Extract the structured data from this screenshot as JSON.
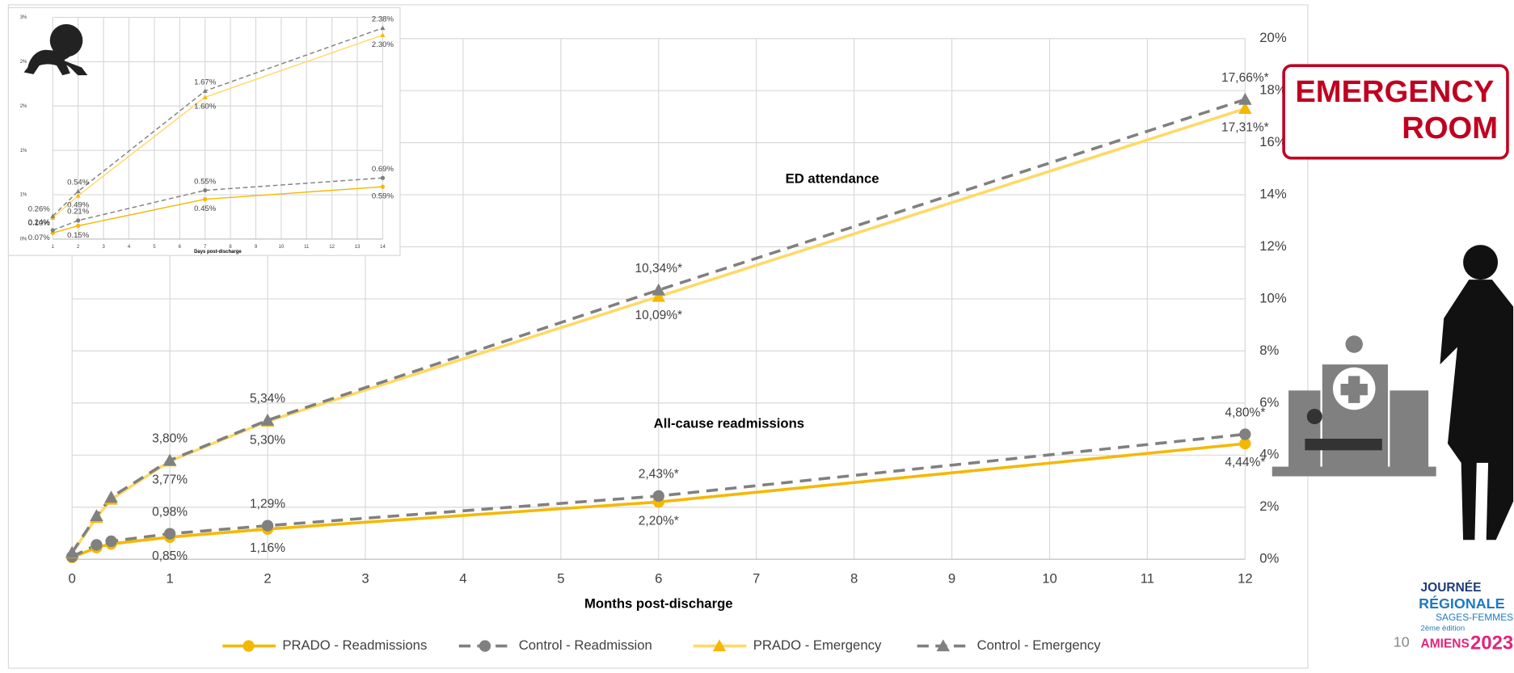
{
  "chart_data": [
    {
      "type": "line",
      "xlabel": "Months post-discharge",
      "annotations": [
        "ED attendance",
        "All-cause readmissions"
      ],
      "x": [
        0,
        0.25,
        0.4,
        1,
        2,
        6,
        12
      ],
      "xlim": [
        0,
        12
      ],
      "xticks": [
        0,
        1,
        2,
        3,
        4,
        5,
        6,
        7,
        8,
        9,
        10,
        11,
        12
      ],
      "ylim": [
        0,
        20
      ],
      "yticks": [
        {
          "value": 0,
          "label": "0%"
        },
        {
          "value": 2,
          "label": "2%"
        },
        {
          "value": 4,
          "label": "4%"
        },
        {
          "value": 6,
          "label": "6%"
        },
        {
          "value": 8,
          "label": "8%"
        },
        {
          "value": 10,
          "label": "10%"
        },
        {
          "value": 12,
          "label": "12%"
        },
        {
          "value": 14,
          "label": "14%"
        },
        {
          "value": 16,
          "label": "16%"
        },
        {
          "value": 18,
          "label": "18%"
        },
        {
          "value": 20,
          "label": "20%"
        }
      ],
      "y_axis_position": "right",
      "grid": true,
      "legend": "bottom",
      "series": [
        {
          "name": "PRADO - Readmissions",
          "color": "#f5b800",
          "dash": false,
          "marker": "circle",
          "values": [
            0.07,
            0.45,
            0.59,
            0.85,
            1.16,
            2.2,
            4.44
          ],
          "value_labels": [
            null,
            null,
            null,
            "0,85%",
            "1,16%",
            "2,20%*",
            "4,44%*"
          ]
        },
        {
          "name": "Control - Readmission",
          "color": "#808080",
          "dash": true,
          "marker": "circle",
          "values": [
            0.1,
            0.55,
            0.69,
            0.98,
            1.29,
            2.43,
            4.8
          ],
          "value_labels": [
            null,
            null,
            null,
            "0,98%",
            "1,29%",
            "2,43%*",
            "4,80%*"
          ]
        },
        {
          "name": "PRADO - Emergency",
          "color": "#ffd966",
          "dash": false,
          "marker": "triangle",
          "values": [
            0.24,
            1.6,
            2.3,
            3.77,
            5.3,
            10.09,
            17.31
          ],
          "value_labels": [
            null,
            null,
            null,
            "3,77%",
            "5,30%",
            "10,09%*",
            "17,31%*"
          ]
        },
        {
          "name": "Control - Emergency",
          "color": "#808080",
          "dash": true,
          "marker": "triangle",
          "values": [
            0.26,
            1.67,
            2.38,
            3.8,
            5.34,
            10.34,
            17.66
          ],
          "value_labels": [
            null,
            null,
            null,
            "3,80%",
            "5,34%",
            "10,34%*",
            "17,66%*"
          ]
        }
      ]
    },
    {
      "type": "line",
      "xlabel": "Days post-discharge",
      "annotations": [],
      "x": [
        1,
        2,
        7,
        14
      ],
      "xlim": [
        1,
        14
      ],
      "xticks": [
        1,
        2,
        3,
        4,
        5,
        6,
        7,
        8,
        9,
        10,
        11,
        12,
        13,
        14
      ],
      "ylim": [
        0,
        2.5
      ],
      "yticks": [
        {
          "value": 0,
          "label": "0%"
        },
        {
          "value": 0.5,
          "label": "1%"
        },
        {
          "value": 1,
          "label": "1%"
        },
        {
          "value": 1.5,
          "label": "2%"
        },
        {
          "value": 2,
          "label": "2%"
        },
        {
          "value": 2.5,
          "label": "3%"
        }
      ],
      "y_axis_position": "left",
      "grid": true,
      "legend": false,
      "series": [
        {
          "name": "PRADO - Readmissions",
          "color": "#f5b800",
          "dash": false,
          "marker": "circle",
          "values": [
            0.07,
            0.15,
            0.45,
            0.59
          ],
          "value_labels": [
            "0.07%",
            "0.15%",
            "0.45%",
            "0.59%"
          ]
        },
        {
          "name": "Control - Readmission",
          "color": "#808080",
          "dash": true,
          "marker": "circle",
          "values": [
            0.1,
            0.21,
            0.55,
            0.69
          ],
          "value_labels": [
            "0.10%",
            "0.21%",
            "0.55%",
            "0.69%"
          ]
        },
        {
          "name": "PRADO - Emergency",
          "color": "#ffd966",
          "dash": false,
          "marker": "triangle",
          "values": [
            0.24,
            0.49,
            1.6,
            2.3
          ],
          "value_labels": [
            "0.24%",
            "0.49%",
            "1.60%",
            "2.30%"
          ]
        },
        {
          "name": "Control - Emergency",
          "color": "#808080",
          "dash": true,
          "marker": "triangle",
          "values": [
            0.26,
            0.54,
            1.67,
            2.38
          ],
          "value_labels": [
            "0.26%",
            "0.54%",
            "1.67%",
            "2.38%"
          ]
        }
      ]
    }
  ],
  "sign": {
    "line1": "EMERGENCY",
    "line2": "ROOM"
  },
  "page_number": "10",
  "logo": {
    "line1": "JOURNÉE",
    "line2": "RÉGIONALE",
    "line3": "SAGES-FEMMES",
    "line4": "2ème édition",
    "city": "AMIENS",
    "year": "2023"
  }
}
